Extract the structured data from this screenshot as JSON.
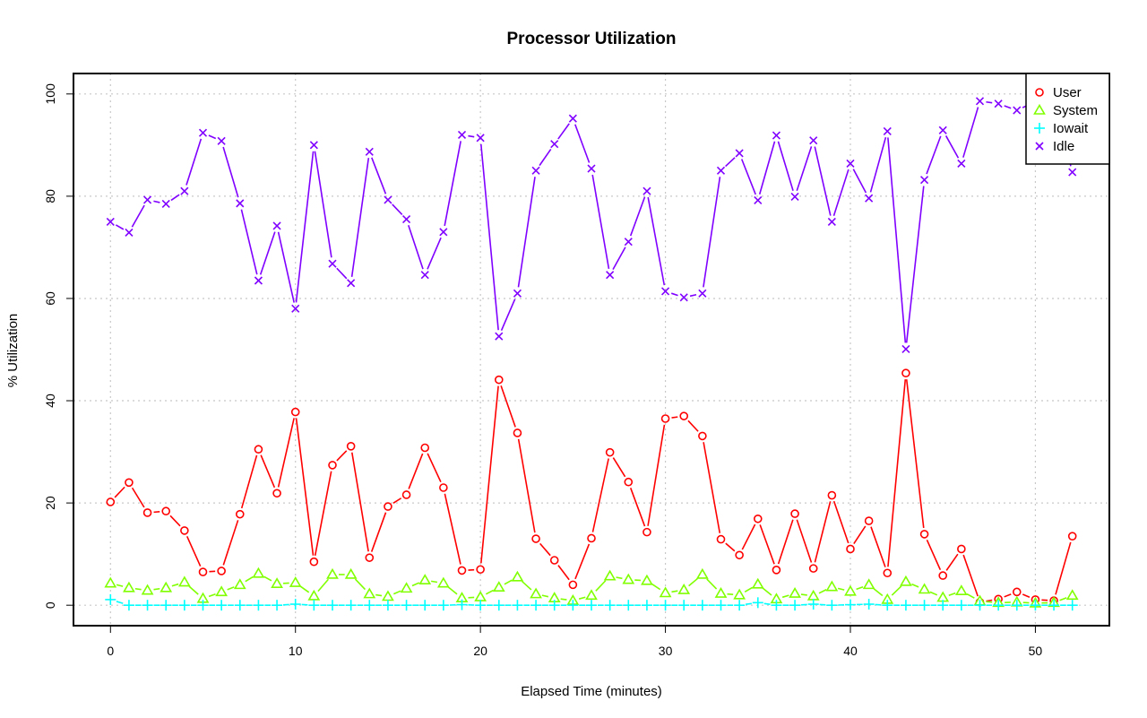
{
  "chart_data": {
    "type": "line",
    "title": "Processor Utilization",
    "xlabel": "Elapsed Time (minutes)",
    "ylabel": "% Utilization",
    "xlim": [
      -2,
      54
    ],
    "ylim": [
      -4,
      104
    ],
    "xticks": [
      0,
      10,
      20,
      30,
      40,
      50
    ],
    "yticks": [
      0,
      20,
      40,
      60,
      80,
      100
    ],
    "grid": true,
    "legend_position": "top-right",
    "x": [
      0,
      1,
      2,
      3,
      4,
      5,
      6,
      7,
      8,
      9,
      10,
      11,
      12,
      13,
      14,
      15,
      16,
      17,
      18,
      19,
      20,
      21,
      22,
      23,
      24,
      25,
      26,
      27,
      28,
      29,
      30,
      31,
      32,
      33,
      34,
      35,
      36,
      37,
      38,
      39,
      40,
      41,
      42,
      43,
      44,
      45,
      46,
      47,
      48,
      49,
      50,
      51,
      52
    ],
    "series": [
      {
        "name": "User",
        "color": "#ff0000",
        "marker": "circle",
        "values": [
          20.2,
          24.0,
          18.1,
          18.4,
          14.6,
          6.5,
          6.7,
          17.8,
          30.5,
          21.9,
          37.8,
          8.5,
          27.4,
          31.1,
          9.3,
          19.3,
          21.6,
          30.8,
          23.0,
          6.8,
          7.0,
          44.1,
          33.7,
          13.0,
          8.8,
          4.0,
          13.1,
          29.9,
          24.1,
          14.3,
          36.5,
          37.0,
          33.1,
          12.9,
          9.8,
          16.9,
          6.9,
          17.9,
          7.2,
          21.5,
          11.0,
          16.5,
          6.3,
          45.4,
          13.9,
          5.8,
          11.0,
          0.6,
          1.2,
          2.6,
          1.1,
          0.9,
          13.5
        ]
      },
      {
        "name": "System",
        "color": "#80ff00",
        "marker": "triangle",
        "values": [
          4.3,
          3.4,
          2.9,
          3.4,
          4.5,
          1.3,
          2.6,
          4.0,
          6.2,
          4.2,
          4.4,
          1.8,
          6.0,
          6.0,
          2.2,
          1.7,
          3.3,
          4.9,
          4.3,
          1.4,
          1.6,
          3.5,
          5.5,
          2.2,
          1.4,
          0.9,
          1.9,
          5.7,
          5.0,
          4.8,
          2.4,
          3.0,
          6.0,
          2.3,
          2.0,
          4.1,
          1.2,
          2.3,
          1.8,
          3.6,
          2.7,
          4.0,
          1.1,
          4.6,
          3.1,
          1.5,
          2.8,
          0.8,
          0.5,
          0.6,
          0.4,
          0.5,
          1.9
        ]
      },
      {
        "name": "Iowait",
        "color": "#00ffff",
        "marker": "plus",
        "values": [
          1.1,
          0.0,
          0.0,
          0.0,
          0.0,
          0.0,
          0.0,
          0.0,
          0.0,
          0.0,
          0.2,
          0.0,
          0.0,
          0.0,
          0.0,
          0.0,
          0.0,
          0.0,
          0.0,
          0.1,
          0.0,
          0.0,
          0.0,
          0.0,
          0.0,
          0.0,
          0.0,
          0.0,
          0.0,
          0.0,
          0.0,
          0.0,
          0.0,
          0.0,
          0.0,
          0.5,
          0.0,
          0.0,
          0.2,
          0.0,
          0.1,
          0.2,
          0.0,
          0.0,
          0.0,
          0.0,
          0.0,
          0.0,
          0.0,
          0.0,
          0.0,
          0.0,
          0.0
        ]
      },
      {
        "name": "Idle",
        "color": "#8000ff",
        "marker": "x",
        "values": [
          75.0,
          72.9,
          79.3,
          78.5,
          81.0,
          92.4,
          90.8,
          78.6,
          63.5,
          74.2,
          58.0,
          90.0,
          66.8,
          63.0,
          88.7,
          79.3,
          75.5,
          64.6,
          73.0,
          92.0,
          91.4,
          52.6,
          61.0,
          85.0,
          90.2,
          95.2,
          85.4,
          64.6,
          71.1,
          81.0,
          61.4,
          60.2,
          61.0,
          85.0,
          88.4,
          79.2,
          91.9,
          79.9,
          90.9,
          75.0,
          86.4,
          79.6,
          92.7,
          50.1,
          83.2,
          92.9,
          86.4,
          98.6,
          98.1,
          96.8,
          98.5,
          98.5,
          84.7
        ]
      }
    ]
  }
}
